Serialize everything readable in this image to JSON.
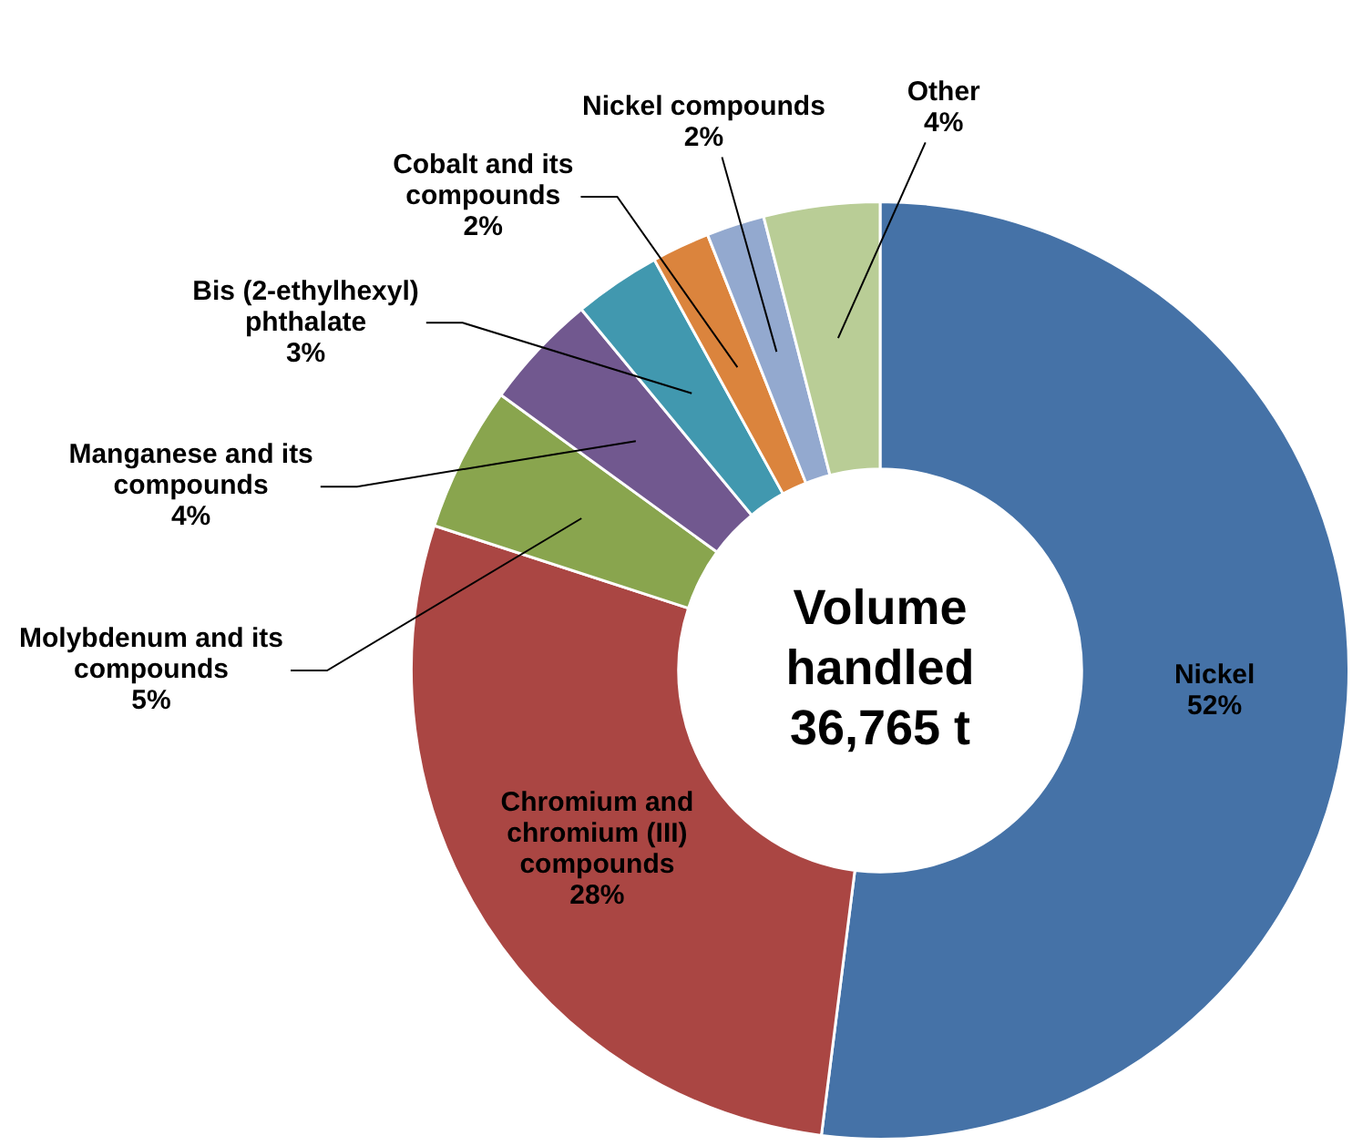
{
  "chart_data": {
    "type": "donut",
    "categories": [
      "Nickel",
      "Chromium and chromium (III) compounds",
      "Molybdenum and its compounds",
      "Manganese and its compounds",
      "Bis (2-ethylhexyl) phthalate",
      "Cobalt and its compounds",
      "Nickel compounds",
      "Other"
    ],
    "values": [
      52,
      28,
      5,
      4,
      3,
      2,
      2,
      4
    ],
    "value_labels": [
      "52%",
      "28%",
      "5%",
      "4%",
      "3%",
      "2%",
      "2%",
      "4%"
    ],
    "colors": [
      "#4572a7",
      "#aa4643",
      "#89a54e",
      "#71588f",
      "#4198af",
      "#db843d",
      "#93a9cf",
      "#b9cd96"
    ],
    "annotations": [
      "Volume handled 36,765 t"
    ],
    "legend": false
  }
}
